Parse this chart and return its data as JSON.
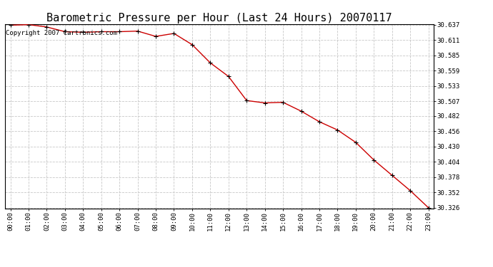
{
  "title": "Barometric Pressure per Hour (Last 24 Hours) 20070117",
  "copyright_text": "Copyright 2007 Cartronics.com",
  "hours": [
    0,
    1,
    2,
    3,
    4,
    5,
    6,
    7,
    8,
    9,
    10,
    11,
    12,
    13,
    14,
    15,
    16,
    17,
    18,
    19,
    20,
    21,
    22,
    23
  ],
  "hour_labels": [
    "00:00",
    "01:00",
    "02:00",
    "03:00",
    "04:00",
    "05:00",
    "06:00",
    "07:00",
    "08:00",
    "09:00",
    "10:00",
    "11:00",
    "12:00",
    "13:00",
    "14:00",
    "15:00",
    "16:00",
    "17:00",
    "18:00",
    "19:00",
    "20:00",
    "21:00",
    "22:00",
    "23:00"
  ],
  "pressure": [
    30.636,
    30.637,
    30.633,
    30.625,
    30.624,
    30.625,
    30.625,
    30.626,
    30.617,
    30.622,
    30.603,
    30.572,
    30.549,
    30.508,
    30.504,
    30.505,
    30.49,
    30.472,
    30.458,
    30.437,
    30.407,
    30.381,
    30.355,
    30.326
  ],
  "yticks": [
    30.326,
    30.352,
    30.378,
    30.404,
    30.43,
    30.456,
    30.482,
    30.507,
    30.533,
    30.559,
    30.585,
    30.611,
    30.637
  ],
  "line_color": "#cc0000",
  "marker_color": "#000000",
  "background_color": "#ffffff",
  "grid_color": "#c8c8c8",
  "title_fontsize": 11,
  "copyright_fontsize": 6.5,
  "tick_fontsize": 6.5
}
